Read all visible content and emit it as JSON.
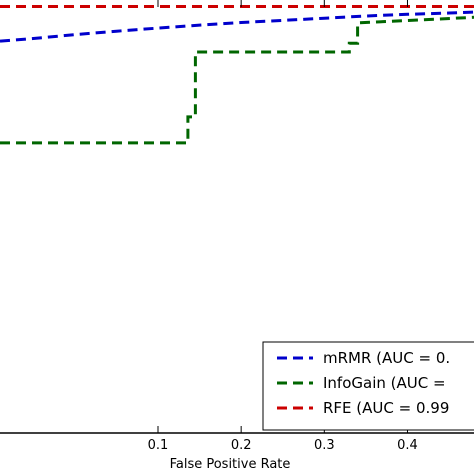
{
  "chart_data": {
    "type": "line",
    "xlabel": "False Positive Rate",
    "ylabel": "",
    "xlim": [
      -0.09,
      0.48
    ],
    "ylim": [
      0.0,
      1.0
    ],
    "x_ticks": [
      0.1,
      0.2,
      0.3,
      0.4
    ],
    "x_tick_labels": [
      "0.1",
      "0.2",
      "0.3",
      "0.4"
    ],
    "grid": false,
    "legend_position": "bottom-right",
    "series": [
      {
        "name": "mRMR (AUC = 0.",
        "color": "#0000cc",
        "style": "dashed",
        "x": [
          -0.09,
          -0.05,
          0.0,
          0.05,
          0.1,
          0.15,
          0.2,
          0.25,
          0.3,
          0.35,
          0.4,
          0.45,
          0.48
        ],
        "y": [
          0.905,
          0.911,
          0.92,
          0.928,
          0.935,
          0.942,
          0.948,
          0.953,
          0.958,
          0.963,
          0.967,
          0.97,
          0.972
        ]
      },
      {
        "name": "InfoGain (AUC =",
        "color": "#006600",
        "style": "dashed",
        "x": [
          -0.09,
          0.136,
          0.136,
          0.145,
          0.145,
          0.33,
          0.33,
          0.34,
          0.34,
          0.48
        ],
        "y": [
          0.67,
          0.67,
          0.73,
          0.73,
          0.88,
          0.88,
          0.9,
          0.9,
          0.947,
          0.96
        ]
      },
      {
        "name": "RFE (AUC = 0.99",
        "color": "#cc0000",
        "style": "dashed",
        "x": [
          -0.09,
          0.48
        ],
        "y": [
          0.985,
          0.985
        ]
      }
    ]
  }
}
